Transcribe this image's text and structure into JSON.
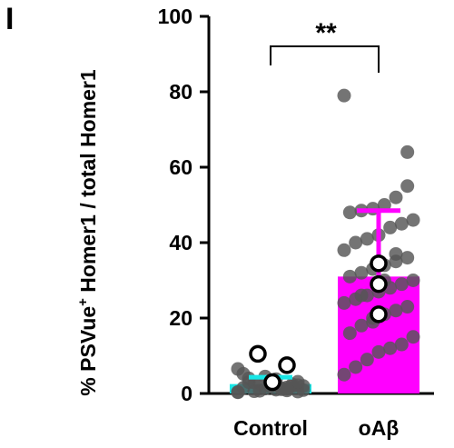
{
  "panel_letter": "I",
  "chart_data": {
    "type": "bar",
    "ylabel": {
      "prefix": "% PSVue",
      "superscript": "+",
      "suffix": " Homer1 / total Homer1"
    },
    "ylim": [
      0,
      100
    ],
    "yticks": [
      "0",
      "20",
      "40",
      "60",
      "80",
      "100"
    ],
    "categories": [
      "Control",
      "oAβ"
    ],
    "values": [
      2.5,
      31
    ],
    "error_sd": [
      1.8,
      17.5
    ],
    "significance": "**",
    "colors": {
      "control_bar": "#17e6e6",
      "oab_bar": "#ff00ff",
      "points": "#555555",
      "axis": "#000000"
    },
    "points": [
      {
        "category": "Control",
        "values": [
          0.3,
          0.5,
          0.8,
          1.0,
          1.3,
          0.6,
          1.5,
          2.0,
          2.4,
          1.1,
          1.8,
          2.6,
          3.0,
          0.4,
          2.2,
          1.6,
          3.8,
          4.5,
          2.9,
          5.2,
          0.9,
          2.0,
          1.4,
          3.4,
          0.7,
          4.0,
          6.5,
          3.1,
          1.2,
          2.5
        ]
      },
      {
        "category": "oAβ",
        "values": [
          79,
          64,
          52,
          50,
          49,
          48.5,
          48,
          46,
          45,
          44,
          42,
          41,
          40,
          38,
          36,
          35,
          34,
          33,
          32,
          31,
          30,
          29,
          28,
          27,
          26,
          25,
          24,
          23,
          22,
          21,
          19,
          18,
          16,
          15,
          13,
          12,
          11,
          9,
          7,
          5,
          55,
          37,
          30,
          20,
          26
        ]
      }
    ],
    "replicate_means": [
      {
        "category": "Control",
        "values": [
          10.5,
          7.5,
          3.0
        ]
      },
      {
        "category": "oAβ",
        "values": [
          34.5,
          29,
          21
        ]
      }
    ]
  }
}
